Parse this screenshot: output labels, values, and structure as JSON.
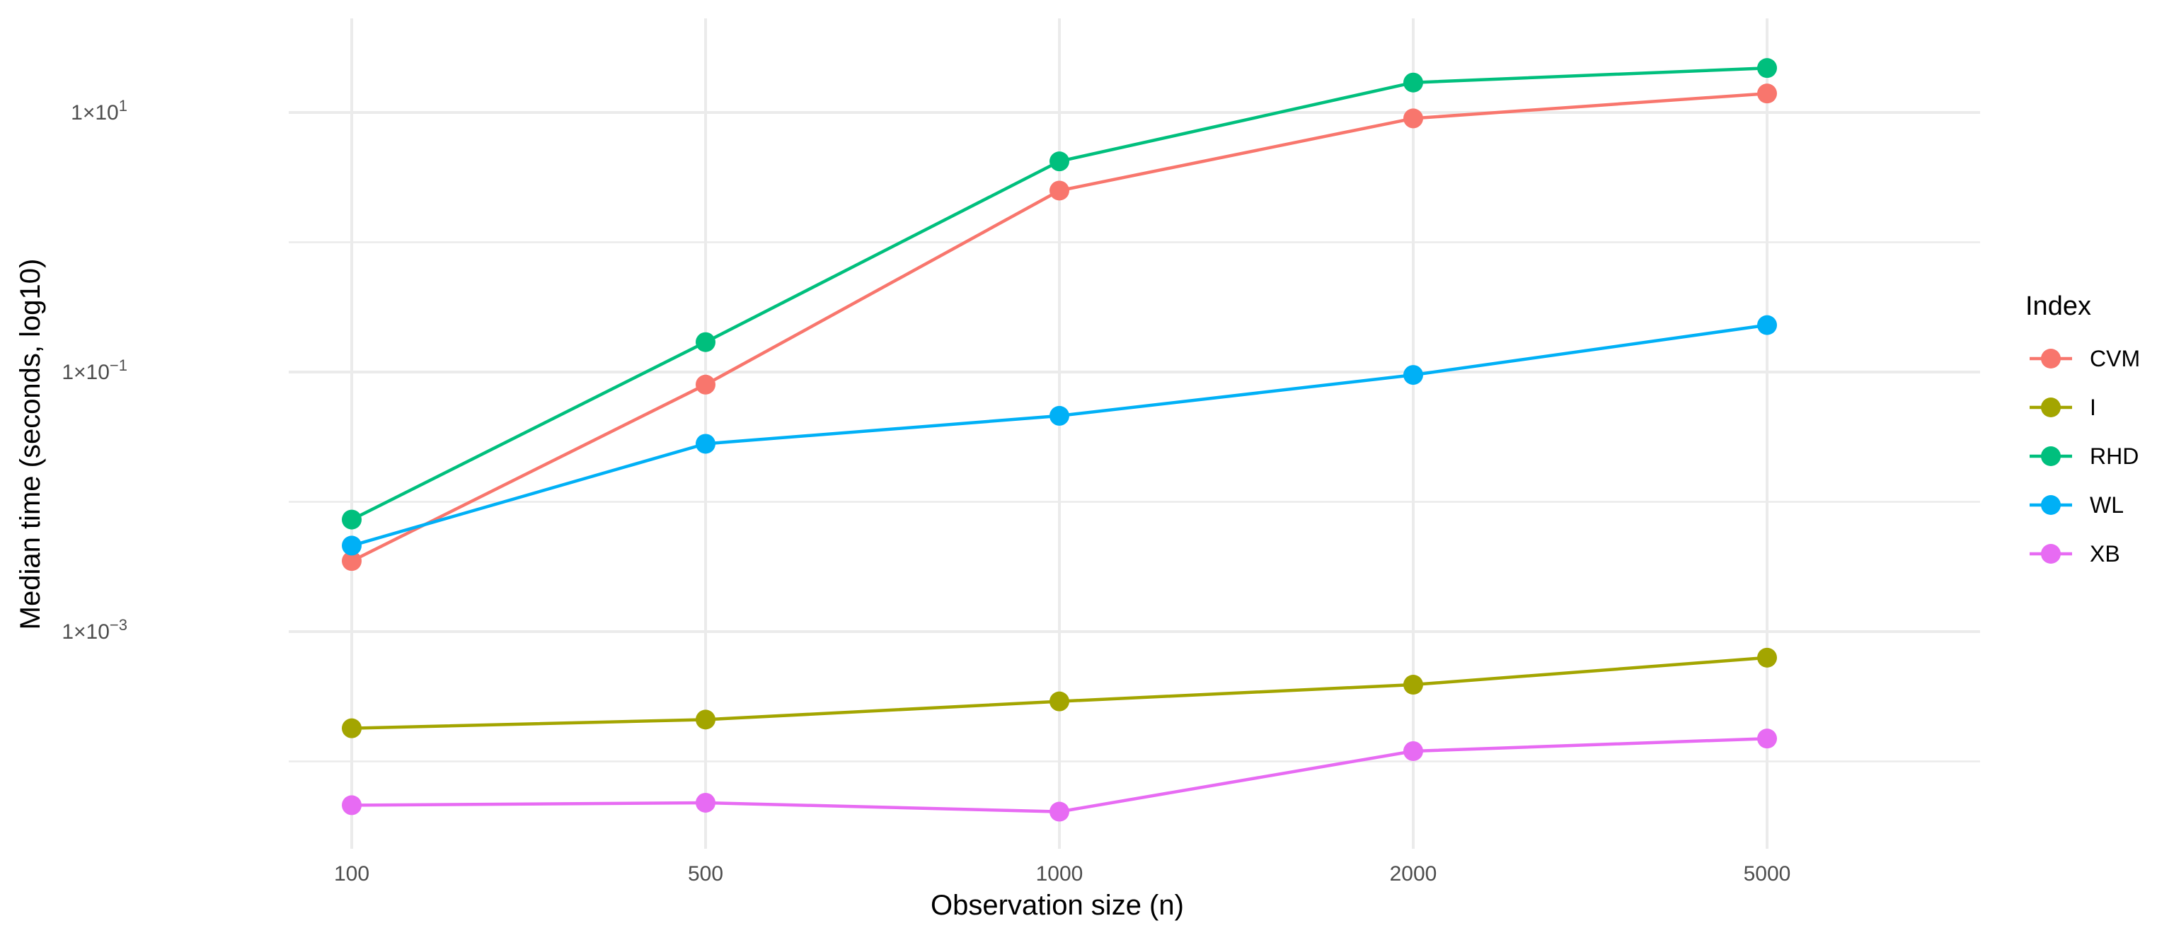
{
  "chart_data": {
    "type": "line",
    "title": "",
    "xlabel": "Observation size (n)",
    "ylabel": "Median time (seconds, log10)",
    "y_scale": "log10",
    "x_scale": "categorical",
    "ylim": [
      8.5e-06,
      35
    ],
    "grid": true,
    "legend_position": "right",
    "legend_title": "Index",
    "categories": [
      "100",
      "500",
      "1000",
      "2000",
      "5000"
    ],
    "y_ticks": [
      {
        "value": 10,
        "base": "1×10",
        "exp": "1"
      },
      {
        "value": 0.1,
        "base": "1×10",
        "exp": "−1"
      },
      {
        "value": 0.001,
        "base": "1×10",
        "exp": "−3"
      }
    ],
    "series": [
      {
        "name": "CVM",
        "color": "#F8766D",
        "values": [
          0.0035,
          0.08,
          2.5,
          9,
          14
        ]
      },
      {
        "name": "I",
        "color": "#A3A500",
        "values": [
          0.00018,
          0.00021,
          0.00029,
          0.00039,
          0.00063
        ]
      },
      {
        "name": "RHD",
        "color": "#00BF7D",
        "values": [
          0.0073,
          0.17,
          4.2,
          17,
          22
        ]
      },
      {
        "name": "WL",
        "color": "#00B0F6",
        "values": [
          0.0046,
          0.028,
          0.046,
          0.095,
          0.23
        ]
      },
      {
        "name": "XB",
        "color": "#E76BF3",
        "values": [
          4.6e-05,
          4.8e-05,
          4.1e-05,
          0.00012,
          0.00015
        ]
      }
    ]
  }
}
